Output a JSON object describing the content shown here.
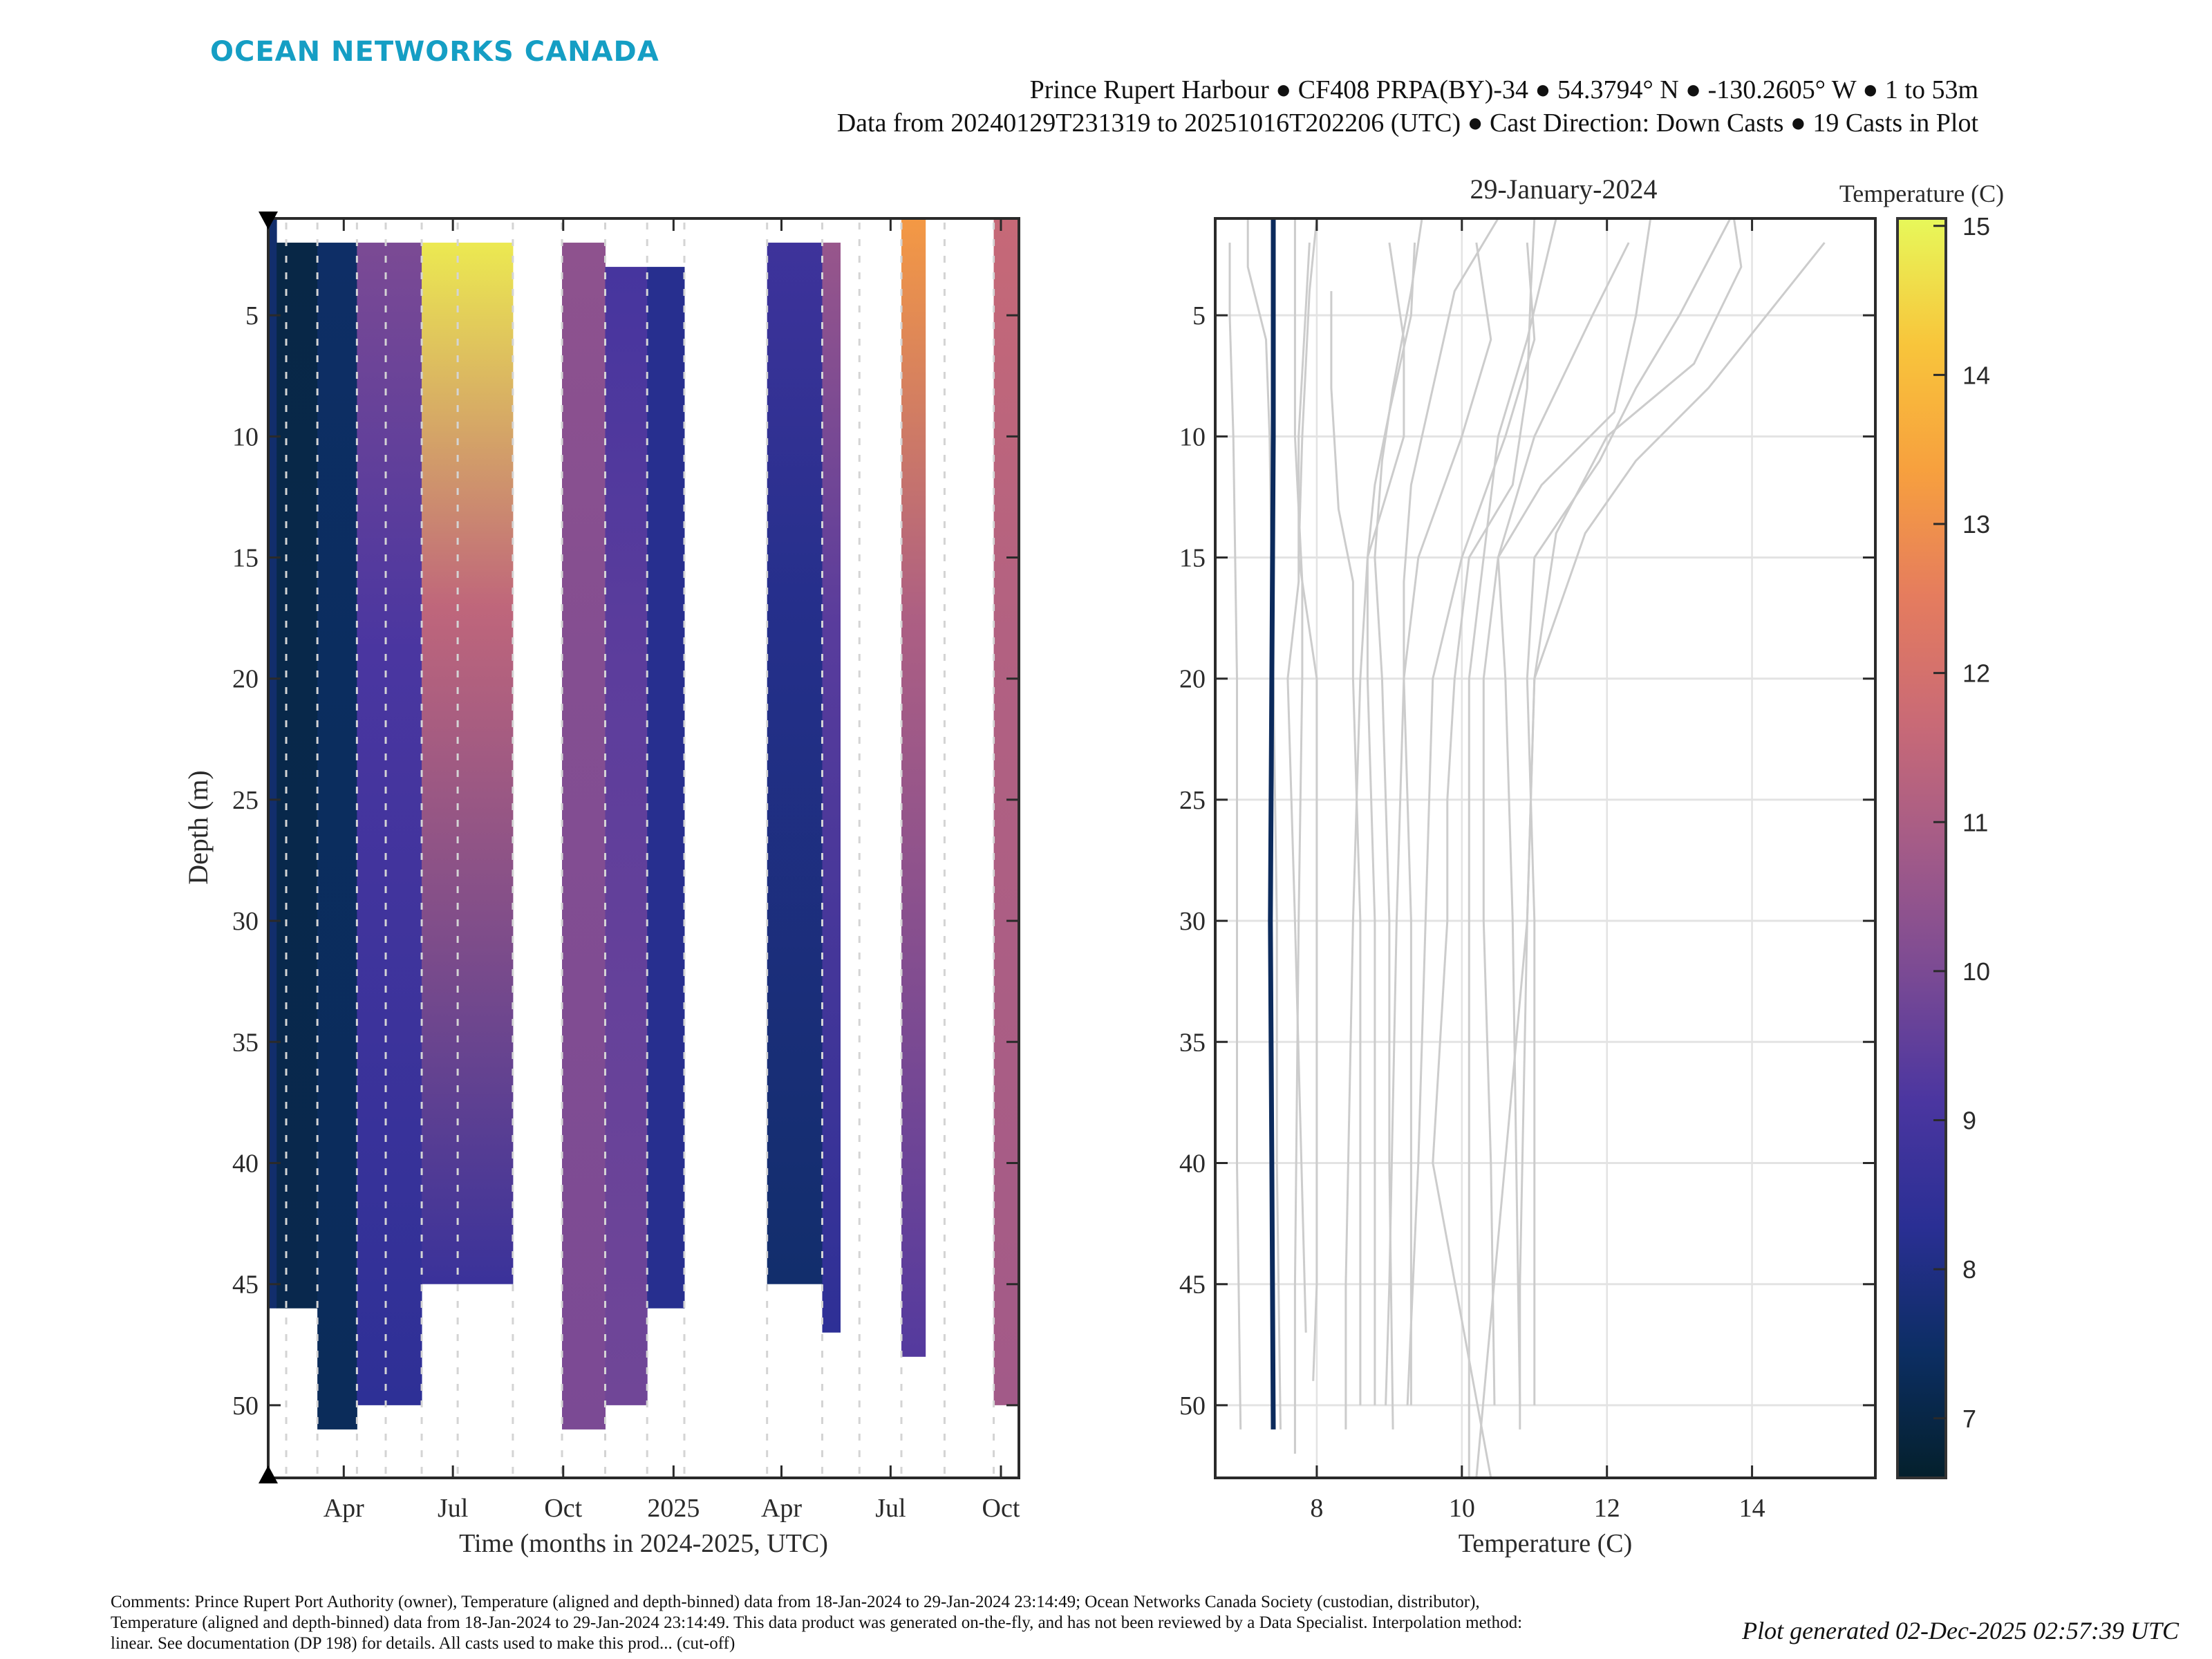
{
  "brand": {
    "logo_text": "OCEAN NETWORKS CANADA",
    "color": "#159ec4"
  },
  "header": {
    "line1": "Prince Rupert Harbour ● CF408 PRPA(BY)-34 ● 54.3794° N ● -130.2605° W ● 1 to 53m",
    "line2": "Data from 20240129T231319 to 20251016T202206 (UTC) ● Cast Direction: Down Casts ● 19 Casts in Plot"
  },
  "footer": {
    "comments": "Comments: Prince Rupert Port Authority (owner), Temperature (aligned and depth-binned) data from 18-Jan-2024 to 29-Jan-2024 23:14:49; Ocean Networks Canada Society (custodian, distributor), Temperature (aligned and depth-binned) data from 18-Jan-2024 to 29-Jan-2024 23:14:49. This data product was generated on-the-fly, and has not been reviewed by a Data Specialist. Interpolation method: linear. See documentation (DP 198) for details. All casts used to make this prod... (cut-off)",
    "generated": "Plot generated 02-Dec-2025 02:57:39 UTC"
  },
  "chart_data": [
    {
      "type": "heatmap",
      "name": "time-depth-section",
      "title": "",
      "xlabel": "Time (months in 2024-2025, UTC)",
      "ylabel": "Depth (m)",
      "x_tick_labels": [
        "Apr",
        "Jul",
        "Oct",
        "2025",
        "Apr",
        "Jul",
        "Oct"
      ],
      "x_tick_dates": [
        "2024-04-01",
        "2024-07-01",
        "2024-10-01",
        "2025-01-01",
        "2025-04-01",
        "2025-07-01",
        "2025-10-01"
      ],
      "xlim": [
        "2024-01-29",
        "2025-10-16"
      ],
      "y_ticks": [
        5,
        10,
        15,
        20,
        25,
        30,
        35,
        40,
        45,
        50
      ],
      "ylim": [
        1,
        53
      ],
      "y_reversed": true,
      "colormap": "thermal",
      "clim": [
        6.6,
        15.05
      ],
      "marker_triangles": [
        "top-left",
        "bottom-left"
      ],
      "segments": [
        {
          "start": "2024-01-29",
          "end": "2024-02-05",
          "top_m": 1,
          "bottom_m": 46,
          "surface_temp": 7.6,
          "deep_temp": 7.6
        },
        {
          "start": "2024-02-05",
          "end": "2024-03-10",
          "top_m": 2,
          "bottom_m": 46,
          "surface_temp": 7.0,
          "deep_temp": 7.1
        },
        {
          "start": "2024-03-10",
          "end": "2024-04-12",
          "top_m": 2,
          "bottom_m": 51,
          "surface_temp": 7.5,
          "deep_temp": 7.3
        },
        {
          "start": "2024-04-12",
          "end": "2024-06-05",
          "top_m": 2,
          "bottom_m": 50,
          "surface_temp": 10.0,
          "deep_temp": 8.4
        },
        {
          "start": "2024-06-05",
          "end": "2024-08-20",
          "top_m": 2,
          "bottom_m": 45,
          "surface_temp": 14.8,
          "deep_temp": 8.7
        },
        {
          "start": "2024-09-30",
          "end": "2024-11-05",
          "top_m": 2,
          "bottom_m": 51,
          "surface_temp": 10.4,
          "deep_temp": 10.0
        },
        {
          "start": "2024-11-05",
          "end": "2024-12-10",
          "top_m": 3,
          "bottom_m": 50,
          "surface_temp": 9.0,
          "deep_temp": 9.8
        },
        {
          "start": "2024-12-10",
          "end": "2025-01-10",
          "top_m": 3,
          "bottom_m": 46,
          "surface_temp": 8.2,
          "deep_temp": 8.2
        },
        {
          "start": "2025-03-20",
          "end": "2025-05-05",
          "top_m": 2,
          "bottom_m": 45,
          "surface_temp": 8.8,
          "deep_temp": 7.6
        },
        {
          "start": "2025-05-05",
          "end": "2025-05-20",
          "top_m": 2,
          "bottom_m": 47,
          "surface_temp": 10.6,
          "deep_temp": 8.4
        },
        {
          "start": "2025-07-10",
          "end": "2025-07-30",
          "top_m": 1,
          "bottom_m": 48,
          "surface_temp": 13.2,
          "deep_temp": 9.3
        },
        {
          "start": "2025-09-25",
          "end": "2025-10-16",
          "top_m": 1,
          "bottom_m": 50,
          "surface_temp": 11.6,
          "deep_temp": 10.8
        }
      ],
      "cast_dates": [
        "2024-02-13",
        "2024-03-10",
        "2024-04-12",
        "2024-05-06",
        "2024-06-05",
        "2024-07-05",
        "2024-08-20",
        "2024-09-30",
        "2024-11-05",
        "2024-12-10",
        "2025-01-10",
        "2025-03-20",
        "2025-05-05",
        "2025-06-05",
        "2025-07-10",
        "2025-08-15",
        "2025-09-25",
        "2025-10-16"
      ]
    },
    {
      "type": "line",
      "name": "temperature-profiles",
      "title": "29-January-2024",
      "xlabel": "Temperature (C)",
      "ylabel": "",
      "x_ticks": [
        8,
        10,
        12,
        14
      ],
      "xlim": [
        6.6,
        15.7
      ],
      "y_ticks": [
        5,
        10,
        15,
        20,
        25,
        30,
        35,
        40,
        45,
        50
      ],
      "ylim": [
        1,
        53
      ],
      "y_reversed": true,
      "grid": true,
      "highlight_color": "#0b2a5c",
      "background_color": "#cccccc",
      "highlight": {
        "name": "29-Jan-2024",
        "depths": [
          0,
          10,
          20,
          30,
          40,
          51
        ],
        "temps": [
          7.4,
          7.4,
          7.38,
          7.36,
          7.38,
          7.4
        ]
      },
      "series": [
        {
          "depths": [
            2,
            5,
            10,
            20,
            30,
            40,
            51
          ],
          "temps": [
            6.8,
            6.8,
            6.85,
            6.9,
            6.9,
            6.9,
            6.95
          ]
        },
        {
          "depths": [
            0,
            3,
            6,
            10,
            20,
            30,
            40,
            51
          ],
          "temps": [
            7.05,
            7.05,
            7.3,
            7.35,
            7.4,
            7.45,
            7.45,
            7.5
          ]
        },
        {
          "depths": [
            0,
            5,
            10,
            16,
            20,
            30,
            45,
            52
          ],
          "temps": [
            7.7,
            7.7,
            7.7,
            7.8,
            7.8,
            7.75,
            7.7,
            7.7
          ]
        },
        {
          "depths": [
            2,
            10,
            16,
            20,
            25,
            30,
            47
          ],
          "temps": [
            7.9,
            7.75,
            7.75,
            7.6,
            7.65,
            7.7,
            7.85
          ]
        },
        {
          "depths": [
            0,
            4,
            10,
            15,
            20,
            30,
            45,
            49
          ],
          "temps": [
            8.0,
            7.9,
            7.8,
            7.75,
            8.0,
            8.0,
            8.0,
            7.95
          ]
        },
        {
          "depths": [
            4,
            8,
            13,
            16,
            20,
            30,
            50
          ],
          "temps": [
            8.2,
            8.2,
            8.3,
            8.5,
            8.5,
            8.6,
            8.6
          ]
        },
        {
          "depths": [
            2,
            6,
            10,
            15,
            20,
            30,
            45,
            51
          ],
          "temps": [
            9.0,
            9.2,
            9.2,
            8.7,
            8.6,
            8.5,
            8.4,
            8.4
          ]
        },
        {
          "depths": [
            2,
            5,
            9,
            12,
            15,
            20,
            30,
            50
          ],
          "temps": [
            9.35,
            9.3,
            9.0,
            8.8,
            8.7,
            8.7,
            8.8,
            8.8
          ]
        },
        {
          "depths": [
            0,
            4,
            8,
            11,
            15,
            20,
            30,
            40,
            51
          ],
          "temps": [
            9.45,
            9.3,
            9.05,
            8.9,
            8.8,
            8.9,
            9.0,
            9.0,
            9.05
          ]
        },
        {
          "depths": [
            2,
            6,
            10,
            15,
            20,
            30,
            45,
            50
          ],
          "temps": [
            10.2,
            10.4,
            10.0,
            9.4,
            9.2,
            9.1,
            9.0,
            8.95
          ]
        },
        {
          "depths": [
            0,
            4,
            8,
            12,
            16,
            20,
            30,
            50
          ],
          "temps": [
            10.5,
            9.9,
            9.6,
            9.3,
            9.2,
            9.2,
            9.3,
            9.3
          ]
        },
        {
          "depths": [
            2,
            6,
            10,
            15,
            20,
            30,
            40,
            50
          ],
          "temps": [
            10.9,
            11.0,
            10.6,
            10.0,
            9.6,
            9.5,
            9.4,
            9.25
          ]
        },
        {
          "depths": [
            0,
            4,
            8,
            12,
            15,
            20,
            25,
            30,
            40,
            53
          ],
          "temps": [
            11.0,
            10.95,
            10.9,
            10.7,
            10.1,
            9.9,
            9.8,
            9.8,
            9.6,
            10.4
          ]
        },
        {
          "depths": [
            0,
            6,
            10,
            15,
            20,
            30,
            40,
            53
          ],
          "temps": [
            11.3,
            10.9,
            10.5,
            10.3,
            10.1,
            10.1,
            10.1,
            10.1
          ]
        },
        {
          "depths": [
            2,
            5,
            10,
            15,
            20,
            30,
            40,
            50
          ],
          "temps": [
            12.3,
            11.8,
            11.0,
            10.5,
            10.3,
            10.3,
            10.4,
            10.45
          ]
        },
        {
          "depths": [
            0,
            5,
            9,
            12,
            15,
            20,
            30,
            50
          ],
          "temps": [
            12.6,
            12.4,
            12.1,
            11.1,
            10.5,
            10.6,
            10.7,
            10.8
          ]
        },
        {
          "depths": [
            0,
            5,
            8,
            11,
            15,
            20,
            30,
            50
          ],
          "temps": [
            13.7,
            13.0,
            12.4,
            11.9,
            11.0,
            10.9,
            11.0,
            11.0
          ]
        },
        {
          "depths": [
            0,
            3,
            7,
            10,
            14,
            20,
            30,
            45,
            51
          ],
          "temps": [
            13.75,
            13.85,
            13.2,
            12.0,
            11.3,
            11.0,
            10.9,
            10.8,
            10.8
          ]
        },
        {
          "depths": [
            2,
            5,
            8,
            11,
            14,
            20,
            30,
            53
          ],
          "temps": [
            15.0,
            14.2,
            13.4,
            12.4,
            11.7,
            11.0,
            10.9,
            10.2
          ]
        }
      ]
    },
    {
      "type": "colorbar",
      "name": "temperature-colorbar",
      "title": "Temperature (C)",
      "ticks": [
        7,
        8,
        9,
        10,
        11,
        12,
        13,
        14,
        15
      ],
      "clim": [
        6.6,
        15.05
      ],
      "colormap": "thermal",
      "colormap_stops": [
        "#04202c",
        "#0c2e63",
        "#2a2f94",
        "#4b36a0",
        "#7a4a94",
        "#a35b88",
        "#c96a76",
        "#e57c5e",
        "#f7a03e",
        "#f8c53b",
        "#e7f85a"
      ]
    }
  ]
}
